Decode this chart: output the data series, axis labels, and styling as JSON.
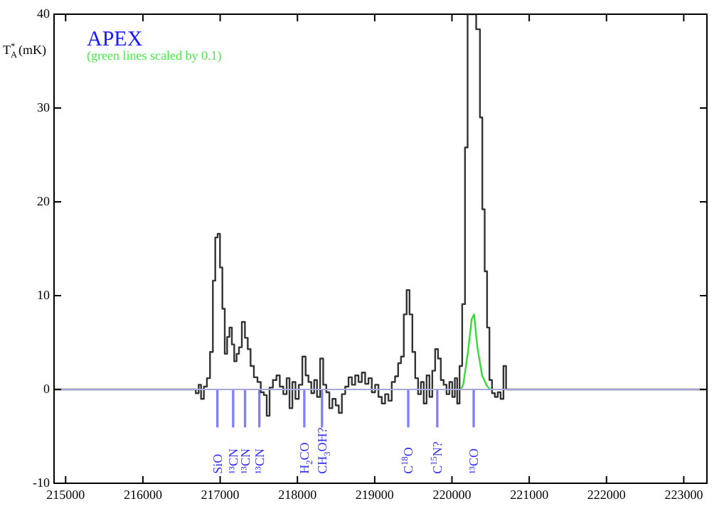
{
  "chart_data": {
    "type": "step",
    "title": "APEX",
    "subtitle": "(green lines scaled by 0.1)",
    "ylabel": "T$_{A}$$^{*}$ (mK)",
    "xlim": [
      214850,
      223300
    ],
    "ylim": [
      -10,
      40
    ],
    "xticks": [
      215000,
      216000,
      217000,
      218000,
      219000,
      220000,
      221000,
      222000,
      223000
    ],
    "yticks": [
      -10,
      0,
      10,
      20,
      30,
      40
    ],
    "series": [
      {
        "color": "#333333",
        "x": [
          214850,
          216663,
          216706,
          216737,
          216768,
          216810,
          216847,
          216890,
          216921,
          216952,
          216982,
          217013,
          217044,
          217075,
          217105,
          217136,
          217167,
          217197,
          217228,
          217259,
          217302,
          217339,
          217375,
          217412,
          217461,
          217504,
          217547,
          217584,
          217621,
          217658,
          217707,
          217750,
          217793,
          217842,
          217879,
          217916,
          217953,
          217996,
          218039,
          218088,
          218124,
          218161,
          218198,
          218235,
          218272,
          218315,
          218352,
          218395,
          218431,
          218474,
          218517,
          218554,
          218597,
          218640,
          218683,
          218726,
          218769,
          218812,
          218855,
          218898,
          218941,
          218984,
          219027,
          219070,
          219113,
          219156,
          219199,
          219242,
          219285,
          219322,
          219359,
          219395,
          219432,
          219469,
          219506,
          219543,
          219580,
          219616,
          219653,
          219690,
          219727,
          219764,
          219801,
          219838,
          219874,
          219911,
          219948,
          219985,
          220022,
          220052,
          220083,
          220114,
          220151,
          220187,
          220218,
          220280,
          220347,
          220378,
          220408,
          220439,
          220470,
          220500,
          220537,
          220574,
          220611,
          220648,
          220685,
          220716,
          223300
        ],
        "values": [
          0,
          0,
          -0.4,
          0.5,
          -1,
          0.3,
          1.2,
          4,
          11.6,
          16.2,
          16.6,
          13,
          8.6,
          3.8,
          5.6,
          6.6,
          4.8,
          3,
          3.8,
          4.5,
          7.2,
          5.5,
          4.3,
          2.5,
          1.3,
          0.8,
          -0.3,
          -0.6,
          -2.8,
          0.2,
          1,
          1.5,
          0.3,
          -0.5,
          1.2,
          -2,
          0.8,
          -1,
          0.5,
          3.5,
          1.5,
          0.8,
          -0.4,
          1,
          -0.8,
          3.3,
          0.5,
          -0.3,
          -2,
          -1,
          -1.7,
          -2.5,
          -0.5,
          0.3,
          1.3,
          0.5,
          1.5,
          0.8,
          1.8,
          0.6,
          1.2,
          -0.3,
          0.5,
          -0.8,
          -1.5,
          -0.5,
          -1.2,
          0.8,
          1.4,
          2.8,
          3.5,
          8,
          10.6,
          8,
          4,
          1.2,
          -0.5,
          0.8,
          -1.5,
          1.5,
          -0.8,
          2,
          4.3,
          3.3,
          1,
          0.5,
          -0.5,
          0.8,
          -0.8,
          1.2,
          -1.5,
          2.5,
          9.1,
          25.8,
          40,
          40,
          38.4,
          29,
          19.2,
          12.6,
          6.6,
          1,
          -0.4,
          -0.8,
          -0.3,
          -1,
          2.5,
          0,
          0
        ]
      },
      {
        "type": "line",
        "color": "#33dd33",
        "x": [
          220114,
          220145,
          220206,
          220255,
          220286,
          220329,
          220390,
          220451,
          220494
        ],
        "values": [
          0,
          0.5,
          3.9,
          7.5,
          8,
          4.5,
          1.5,
          0.4,
          0
        ]
      },
      {
        "type": "bar",
        "color": "#8080ff",
        "x": [
          216964,
          217168,
          217322,
          217507,
          218089,
          218318,
          219434,
          219810,
          220281
        ],
        "values": [
          -4,
          -4,
          -4,
          -4,
          -4,
          -4,
          -4,
          -4,
          -4
        ]
      }
    ],
    "ref_lines": [
      {
        "axis": "y",
        "value": 0,
        "color": "#a8a8d8"
      }
    ],
    "annotations": [
      {
        "text": "SiO",
        "x": 216964,
        "y": -4
      },
      {
        "text": "¹³CN",
        "x": 217168,
        "y": -4
      },
      {
        "text": "¹³CN",
        "x": 217322,
        "y": -4
      },
      {
        "text": "¹³CN",
        "x": 217507,
        "y": -4
      },
      {
        "text": "H$_{2}$CO",
        "x": 218089,
        "y": -4
      },
      {
        "text": "CH$_{3}$OH?",
        "x": 218318,
        "y": -4
      },
      {
        "text": "C$^{18}$O",
        "x": 219434,
        "y": -4
      },
      {
        "text": "C$^{15}$N?",
        "x": 219810,
        "y": -4
      },
      {
        "text": "¹³CO",
        "x": 220281,
        "y": -4
      }
    ]
  }
}
